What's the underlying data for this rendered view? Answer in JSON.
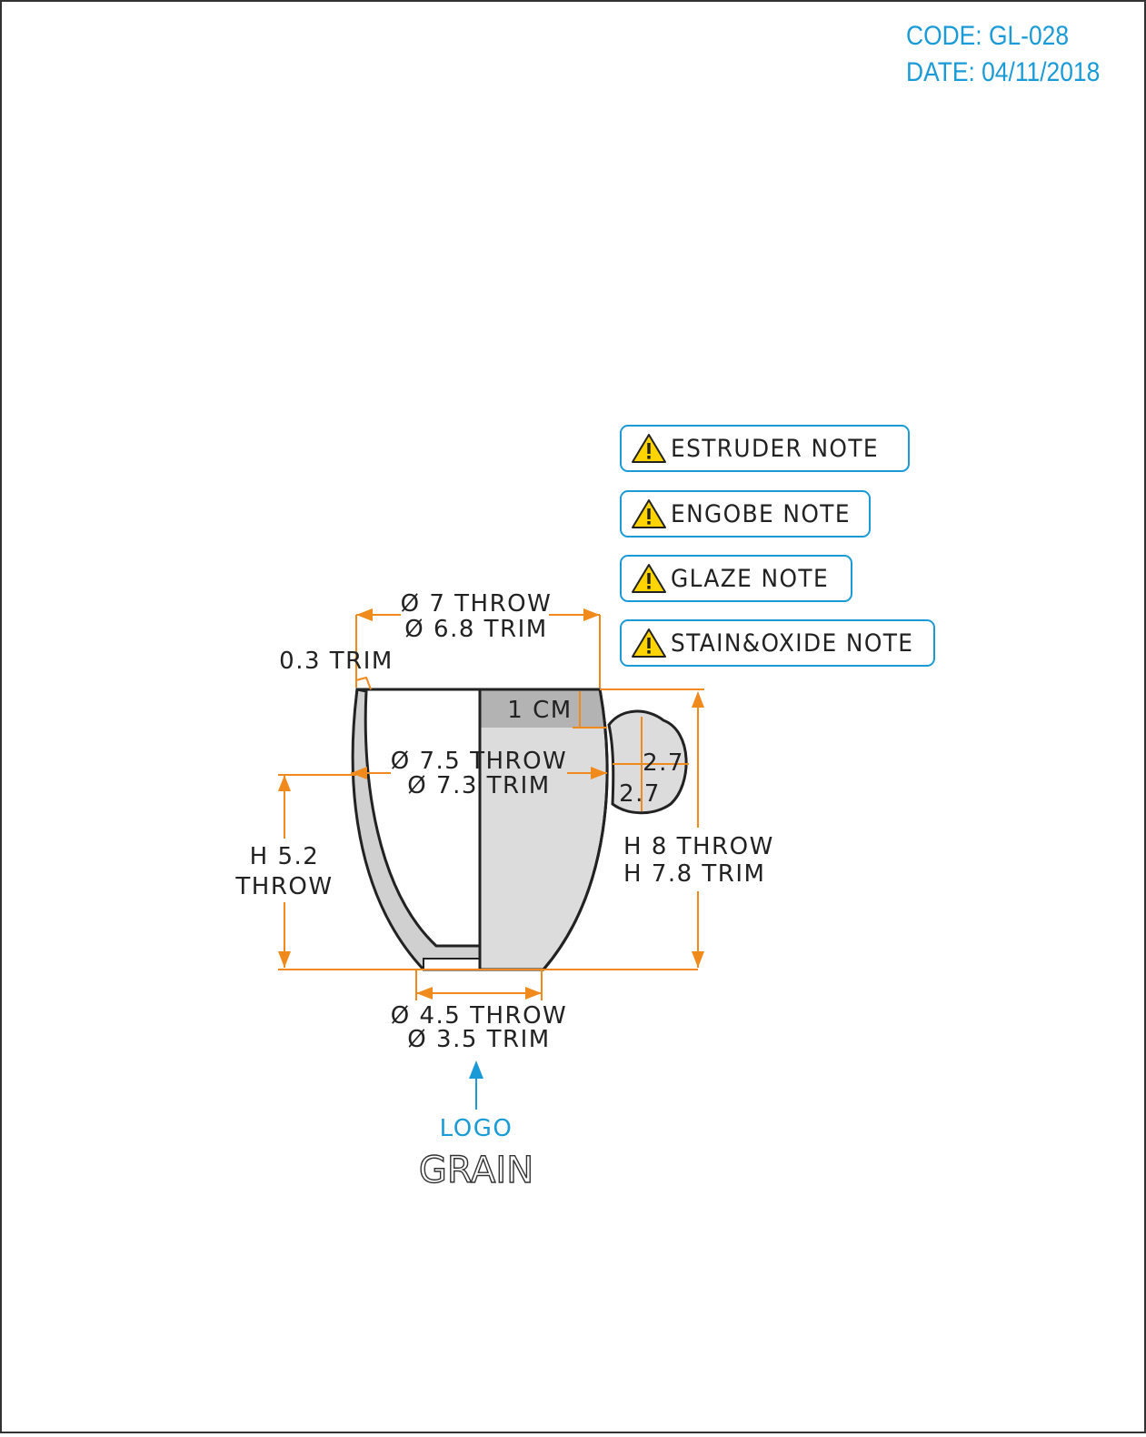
{
  "header": {
    "code": "CODE: GL-028",
    "date": "DATE: 04/11/2018"
  },
  "notes": [
    {
      "label": "ESTRUDER NOTE",
      "icon": "warning-icon"
    },
    {
      "label": "ENGOBE NOTE",
      "icon": "warning-icon"
    },
    {
      "label": "GLAZE NOTE",
      "icon": "warning-icon"
    },
    {
      "label": "STAIN&OXIDE NOTE",
      "icon": "warning-icon"
    }
  ],
  "dimensions": {
    "top_diameter_throw": "Ø 7 THROW",
    "top_diameter_trim": "Ø 6.8 TRIM",
    "wall_trim": "0.3 TRIM",
    "rim_band": "1 CM",
    "mid_diameter_throw": "Ø 7.5 THROW",
    "mid_diameter_trim": "Ø 7.3 TRIM",
    "handle_width": "2.7",
    "handle_height": "2.7",
    "inner_height_line1": "H 5.2",
    "inner_height_line2": "THROW",
    "total_height_throw": "H 8 THROW",
    "total_height_trim": "H 7.8 TRIM",
    "base_diameter_throw": "Ø 4.5 THROW",
    "base_diameter_trim": "Ø 3.5 TRIM"
  },
  "logo": {
    "label": "LOGO",
    "brand": "GRAIN"
  },
  "colors": {
    "dimension_orange": "#f08a1d",
    "accent_blue": "#1a9ad6",
    "body_gray": "#dcdcdc",
    "band_gray": "#b3b3b3",
    "warning_yellow": "#ffd400"
  }
}
